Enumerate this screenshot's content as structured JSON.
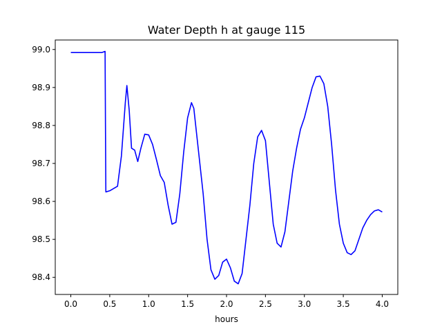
{
  "chart_data": {
    "type": "line",
    "title": "Water Depth h at gauge 115",
    "xlabel": "hours",
    "ylabel": "",
    "xlim": [
      -0.2,
      4.2
    ],
    "ylim": [
      98.355,
      99.025
    ],
    "xticks": [
      0.0,
      0.5,
      1.0,
      1.5,
      2.0,
      2.5,
      3.0,
      3.5,
      4.0
    ],
    "xtick_labels": [
      "0.0",
      "0.5",
      "1.0",
      "1.5",
      "2.0",
      "2.5",
      "3.0",
      "3.5",
      "4.0"
    ],
    "yticks": [
      98.4,
      98.5,
      98.6,
      98.7,
      98.8,
      98.9,
      99.0
    ],
    "ytick_labels": [
      "98.4",
      "98.5",
      "98.6",
      "98.7",
      "98.8",
      "98.9",
      "99.0"
    ],
    "grid": false,
    "series_color": "#0000ff",
    "series": [
      {
        "x": [
          0.0,
          0.2,
          0.4,
          0.44,
          0.445,
          0.45,
          0.5,
          0.6,
          0.65,
          0.7,
          0.72,
          0.75,
          0.78,
          0.82,
          0.86,
          0.9,
          0.95,
          1.0,
          1.05,
          1.1,
          1.15,
          1.2,
          1.25,
          1.3,
          1.35,
          1.4,
          1.45,
          1.5,
          1.55,
          1.58,
          1.62,
          1.7,
          1.75,
          1.8,
          1.85,
          1.9,
          1.95,
          2.0,
          2.05,
          2.1,
          2.15,
          2.2,
          2.3,
          2.35,
          2.4,
          2.45,
          2.5,
          2.55,
          2.6,
          2.65,
          2.7,
          2.75,
          2.8,
          2.85,
          2.9,
          2.95,
          3.0,
          3.05,
          3.1,
          3.15,
          3.2,
          3.25,
          3.3,
          3.35,
          3.4,
          3.45,
          3.5,
          3.55,
          3.6,
          3.65,
          3.7,
          3.75,
          3.8,
          3.85,
          3.9,
          3.95,
          4.0
        ],
        "y": [
          98.992,
          98.992,
          98.992,
          98.995,
          98.8,
          98.625,
          98.628,
          98.64,
          98.72,
          98.86,
          98.905,
          98.84,
          98.74,
          98.735,
          98.705,
          98.74,
          98.777,
          98.775,
          98.75,
          98.71,
          98.668,
          98.65,
          98.59,
          98.54,
          98.545,
          98.62,
          98.73,
          98.82,
          98.86,
          98.845,
          98.77,
          98.62,
          98.5,
          98.42,
          98.395,
          98.405,
          98.44,
          98.448,
          98.425,
          98.39,
          98.383,
          98.41,
          98.59,
          98.7,
          98.77,
          98.787,
          98.76,
          98.65,
          98.54,
          98.49,
          98.48,
          98.52,
          98.6,
          98.68,
          98.74,
          98.79,
          98.82,
          98.86,
          98.9,
          98.928,
          98.93,
          98.91,
          98.85,
          98.75,
          98.63,
          98.54,
          98.49,
          98.465,
          98.46,
          98.47,
          98.5,
          98.53,
          98.55,
          98.565,
          98.575,
          98.578,
          98.572
        ]
      }
    ]
  }
}
